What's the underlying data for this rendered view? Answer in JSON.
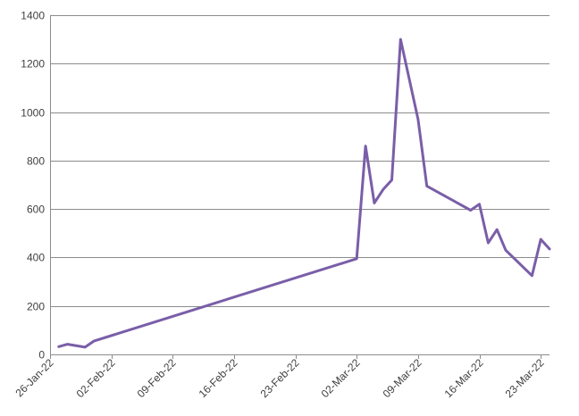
{
  "chart_data": {
    "type": "line",
    "title": "",
    "xlabel": "",
    "ylabel": "",
    "x_ticks": [
      "26-Jan-22",
      "02-Feb-22",
      "09-Feb-22",
      "16-Feb-22",
      "23-Feb-22",
      "02-Mar-22",
      "09-Mar-22",
      "16-Mar-22",
      "23-Mar-22"
    ],
    "xlim": [
      "2022-01-26",
      "2022-03-24"
    ],
    "ylim": [
      0,
      1400
    ],
    "y_ticks": [
      0,
      200,
      400,
      600,
      800,
      1000,
      1200,
      1400
    ],
    "grid": true,
    "legend": "none",
    "series": [
      {
        "color": "#7a5ea8",
        "points": [
          {
            "x": "2022-01-27",
            "y": 32
          },
          {
            "x": "2022-01-28",
            "y": 42
          },
          {
            "x": "2022-01-30",
            "y": 30
          },
          {
            "x": "2022-01-31",
            "y": 55
          },
          {
            "x": "2022-03-02",
            "y": 395
          },
          {
            "x": "2022-03-03",
            "y": 860
          },
          {
            "x": "2022-03-04",
            "y": 625
          },
          {
            "x": "2022-03-05",
            "y": 680
          },
          {
            "x": "2022-03-06",
            "y": 720
          },
          {
            "x": "2022-03-07",
            "y": 1300
          },
          {
            "x": "2022-03-09",
            "y": 970
          },
          {
            "x": "2022-03-10",
            "y": 695
          },
          {
            "x": "2022-03-15",
            "y": 595
          },
          {
            "x": "2022-03-16",
            "y": 620
          },
          {
            "x": "2022-03-17",
            "y": 460
          },
          {
            "x": "2022-03-18",
            "y": 515
          },
          {
            "x": "2022-03-19",
            "y": 430
          },
          {
            "x": "2022-03-22",
            "y": 325
          },
          {
            "x": "2022-03-23",
            "y": 475
          },
          {
            "x": "2022-03-24",
            "y": 435
          }
        ]
      }
    ]
  }
}
